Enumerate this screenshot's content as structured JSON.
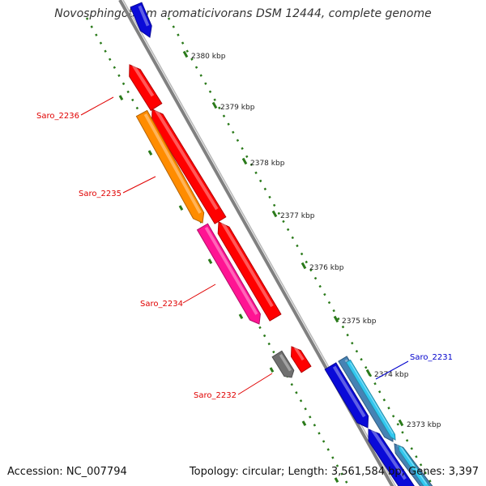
{
  "title": "Novosphingobium aromaticivorans DSM 12444, complete genome",
  "footer": {
    "accession": "Accession: NC_007794",
    "summary": "Topology: circular; Length: 3,561,584 bp; Genes: 3,397"
  },
  "ruler_ticks": [
    "2380 kbp",
    "2379 kbp",
    "2378 kbp",
    "2377 kbp",
    "2376 kbp",
    "2375 kbp",
    "2374 kbp",
    "2373 kbp"
  ],
  "gene_labels": [
    {
      "text": "Saro_2236",
      "color": "#e00000"
    },
    {
      "text": "Saro_2235",
      "color": "#e00000"
    },
    {
      "text": "Saro_2234",
      "color": "#e00000"
    },
    {
      "text": "Saro_2232",
      "color": "#e00000"
    },
    {
      "text": "Saro_2231",
      "color": "#0000cc"
    }
  ],
  "colors": {
    "backbone": "#808080",
    "tick": "#2a7a1a",
    "red": "#ff0000",
    "orange": "#ff8c00",
    "magenta": "#ff1493",
    "gray": "#707070",
    "blue": "#0a0ad8",
    "steel_blue": "#4682b4",
    "cyan": "#32c8f0",
    "label_red": "#e00000",
    "label_blue": "#0000cc"
  }
}
